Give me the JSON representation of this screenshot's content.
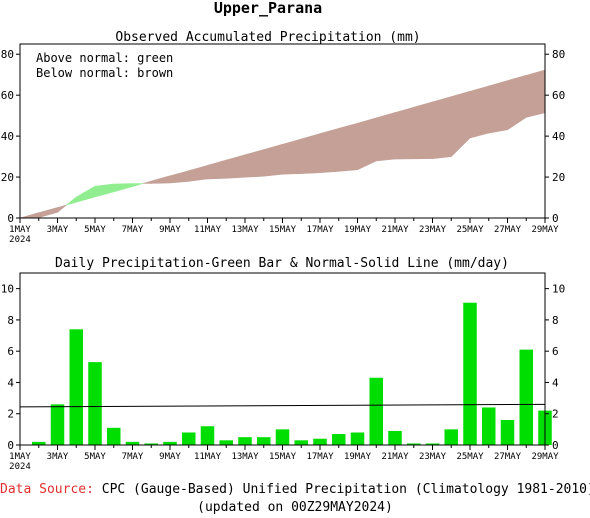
{
  "header": {
    "title": "Upper_Parana"
  },
  "chart_data": [
    {
      "type": "area",
      "title": "Observed Accumulated Precipitation (mm)",
      "legend": [
        "Above normal: green",
        "Below normal: brown"
      ],
      "legend_placement": "top-left",
      "colors": {
        "above": "#90ee90",
        "below": "#c4a096"
      },
      "ylim": [
        0,
        85
      ],
      "yticks": [
        0,
        20,
        40,
        60,
        80
      ],
      "x_tick_labels": [
        "1MAY",
        "3MAY",
        "5MAY",
        "7MAY",
        "9MAY",
        "11MAY",
        "13MAY",
        "15MAY",
        "17MAY",
        "19MAY",
        "21MAY",
        "23MAY",
        "25MAY",
        "27MAY",
        "29MAY"
      ],
      "x_year_label": "2024",
      "days": [
        0,
        1,
        2,
        3,
        4,
        5,
        6,
        7,
        8,
        9,
        10,
        11,
        12,
        13,
        14,
        15,
        16,
        17,
        18,
        19,
        20,
        21,
        22,
        23,
        24,
        25,
        26,
        27,
        28
      ],
      "observed": [
        0,
        0.2,
        2.8,
        10.2,
        15.5,
        16.6,
        16.8,
        16.9,
        17.1,
        17.9,
        19.1,
        19.4,
        19.9,
        20.4,
        21.4,
        21.7,
        22.1,
        22.8,
        23.6,
        27.9,
        28.8,
        28.9,
        29.0,
        30.0,
        39.1,
        41.5,
        43.1,
        49.2,
        51.4
      ],
      "normal": [
        0,
        2.6,
        5.1,
        7.7,
        10.3,
        12.8,
        15.4,
        18.0,
        20.6,
        23.1,
        25.7,
        28.3,
        30.9,
        33.4,
        36.0,
        38.6,
        41.2,
        43.8,
        46.3,
        48.9,
        51.5,
        54.1,
        56.7,
        59.3,
        61.9,
        64.5,
        67.1,
        69.7,
        72.3
      ]
    },
    {
      "type": "bar",
      "title": "Daily Precipitation-Green Bar & Normal-Solid Line (mm/day)",
      "bar_color": "#00dd00",
      "ylim": [
        0,
        11
      ],
      "yticks": [
        0,
        2,
        4,
        6,
        8,
        10
      ],
      "x_tick_labels": [
        "1MAY",
        "3MAY",
        "5MAY",
        "7MAY",
        "9MAY",
        "11MAY",
        "13MAY",
        "15MAY",
        "17MAY",
        "19MAY",
        "21MAY",
        "23MAY",
        "25MAY",
        "27MAY",
        "29MAY"
      ],
      "x_year_label": "2024",
      "days": [
        1,
        2,
        3,
        4,
        5,
        6,
        7,
        8,
        9,
        10,
        11,
        12,
        13,
        14,
        15,
        16,
        17,
        18,
        19,
        20,
        21,
        22,
        23,
        24,
        25,
        26,
        27,
        28
      ],
      "values": [
        0.2,
        2.6,
        7.4,
        5.3,
        1.1,
        0.2,
        0.1,
        0.2,
        0.8,
        1.2,
        0.3,
        0.5,
        0.5,
        1.0,
        0.3,
        0.4,
        0.7,
        0.8,
        4.3,
        0.9,
        0.1,
        0.1,
        1.0,
        9.1,
        2.4,
        1.6,
        6.1,
        2.2
      ],
      "normal": [
        2.44,
        2.6
      ]
    }
  ],
  "footer": {
    "source_label": "Data Source:",
    "source_text": "CPC (Gauge-Based) Unified Precipitation (Climatology 1981-2010)",
    "updated": "(updated on 00Z29MAY2024)"
  }
}
